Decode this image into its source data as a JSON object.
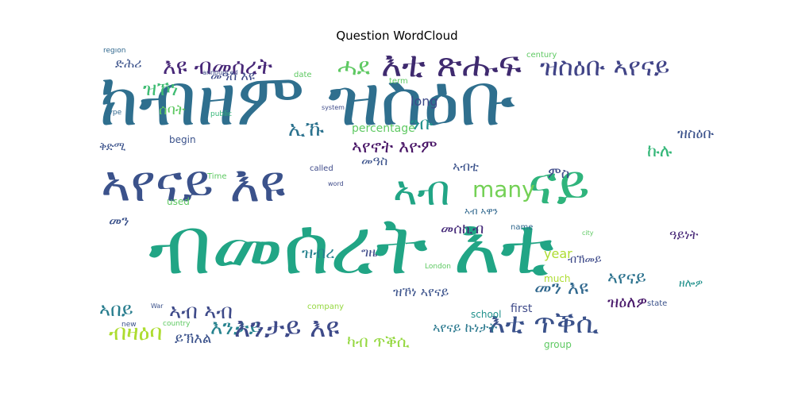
{
  "title": "Question WordCloud",
  "words": [
    {
      "text": "ክብዘም ዝስዕቡ",
      "color": "#2f6f8e"
    },
    {
      "text": "ብመሰረት እቲ",
      "color": "#21a585"
    },
    {
      "text": "ኣየናይ እዩ",
      "color": "#3b528b"
    },
    {
      "text": "ኣብ",
      "color": "#21a585"
    },
    {
      "text": "ናይ",
      "color": "#2fb47c"
    },
    {
      "text": "እቲ ጽሑፍ",
      "color": "#3f2a6f"
    },
    {
      "text": "ዝስዕቡ ኣየናይ",
      "color": "#414487"
    },
    {
      "text": "እቲ ጥቕሲ",
      "color": "#3b528b"
    },
    {
      "text": "እንታይ",
      "color": "#26828e"
    },
    {
      "text": "እንታይ እዩ",
      "color": "#3e4a89"
    },
    {
      "text": "እዩ ብመሰረት",
      "color": "#482878"
    },
    {
      "text": "ሓደ",
      "color": "#5ec962"
    },
    {
      "text": "ዝኾነ",
      "color": "#3fbc73"
    },
    {
      "text": "ብዛዕባ",
      "color": "#addc30"
    },
    {
      "text": "many",
      "color": "#73d055"
    },
    {
      "text": "ኣየናይ",
      "color": "#2c728e"
    },
    {
      "text": "ኣየኖት እዮም",
      "color": "#471365"
    },
    {
      "text": "መን እዩ",
      "color": "#31688e"
    },
    {
      "text": "ኣብ ኣብ",
      "color": "#3e4a89"
    },
    {
      "text": "ኣበይ",
      "color": "#287d8e"
    },
    {
      "text": "ኣየናይ ኩነታት",
      "color": "#2a788e"
    },
    {
      "text": "ካብ ጥቕሲ",
      "color": "#95d840"
    },
    {
      "text": "ኣብቲ",
      "color": "#3b528b"
    },
    {
      "text": "year",
      "color": "#addc30"
    },
    {
      "text": "ንቡ",
      "color": "#21918c"
    },
    {
      "text": "ኢኹ",
      "color": "#2c728e"
    },
    {
      "text": "ኩሉ",
      "color": "#35b779"
    },
    {
      "text": "long",
      "color": "#3e4a89"
    },
    {
      "text": "percentage",
      "color": "#5ec962"
    },
    {
      "text": "መዓስ",
      "color": "#3b528b"
    },
    {
      "text": "ዝብረ",
      "color": "#26828e"
    },
    {
      "text": "መሰኪብ",
      "color": "#472c7a"
    },
    {
      "text": "ዝስዕቡ",
      "color": "#3b528b"
    },
    {
      "text": "ዝዕለዎ",
      "color": "#48186a"
    },
    {
      "text": "ይኽእል",
      "color": "#3b528b"
    },
    {
      "text": "መዓስ እዩ",
      "color": "#3e4a89"
    },
    {
      "text": "ሰባት",
      "color": "#5ec962"
    },
    {
      "text": "ድሕሪ",
      "color": "#3b528b"
    },
    {
      "text": "ምስ",
      "color": "#3e4a89"
    },
    {
      "text": "ቅድሚ",
      "color": "#3b528b"
    },
    {
      "text": "ግዜ",
      "color": "#3e4a89"
    },
    {
      "text": "ኣብ ኣዋን",
      "color": "#31688e"
    },
    {
      "text": "መን",
      "color": "#3b528b"
    },
    {
      "text": "ብኽመይ",
      "color": "#3e4a89"
    },
    {
      "text": "ዓይነት",
      "color": "#482878"
    },
    {
      "text": "ዘሎዎ",
      "color": "#21918c"
    },
    {
      "text": "ዝኾነ ኣየናይ",
      "color": "#3b528b"
    },
    {
      "text": "much",
      "color": "#addc30"
    },
    {
      "text": "first",
      "color": "#3e4a89"
    },
    {
      "text": "group",
      "color": "#5ec962"
    },
    {
      "text": "school",
      "color": "#21918c"
    },
    {
      "text": "used",
      "color": "#5ec962"
    },
    {
      "text": "begin",
      "color": "#3b528b"
    },
    {
      "text": "name",
      "color": "#31688e"
    },
    {
      "text": "company",
      "color": "#95d840"
    },
    {
      "text": "state",
      "color": "#3b528b"
    },
    {
      "text": "century",
      "color": "#5ec962"
    },
    {
      "text": "country",
      "color": "#5ec962"
    },
    {
      "text": "region",
      "color": "#31688e"
    },
    {
      "text": "type",
      "color": "#31688e"
    },
    {
      "text": "public",
      "color": "#35b779"
    },
    {
      "text": "announced",
      "color": "#3e4a89"
    },
    {
      "text": "term",
      "color": "#5ec962"
    },
    {
      "text": "date",
      "color": "#5ec962"
    },
    {
      "text": "called",
      "color": "#3e4a89"
    },
    {
      "text": "Time",
      "color": "#5ec962"
    },
    {
      "text": "new",
      "color": "#3b528b"
    },
    {
      "text": "War",
      "color": "#3b528b"
    },
    {
      "text": "London",
      "color": "#5ec962"
    },
    {
      "text": "system",
      "color": "#3e4a89"
    },
    {
      "text": "word",
      "color": "#3e4a89"
    },
    {
      "text": "city",
      "color": "#5ec962"
    }
  ]
}
